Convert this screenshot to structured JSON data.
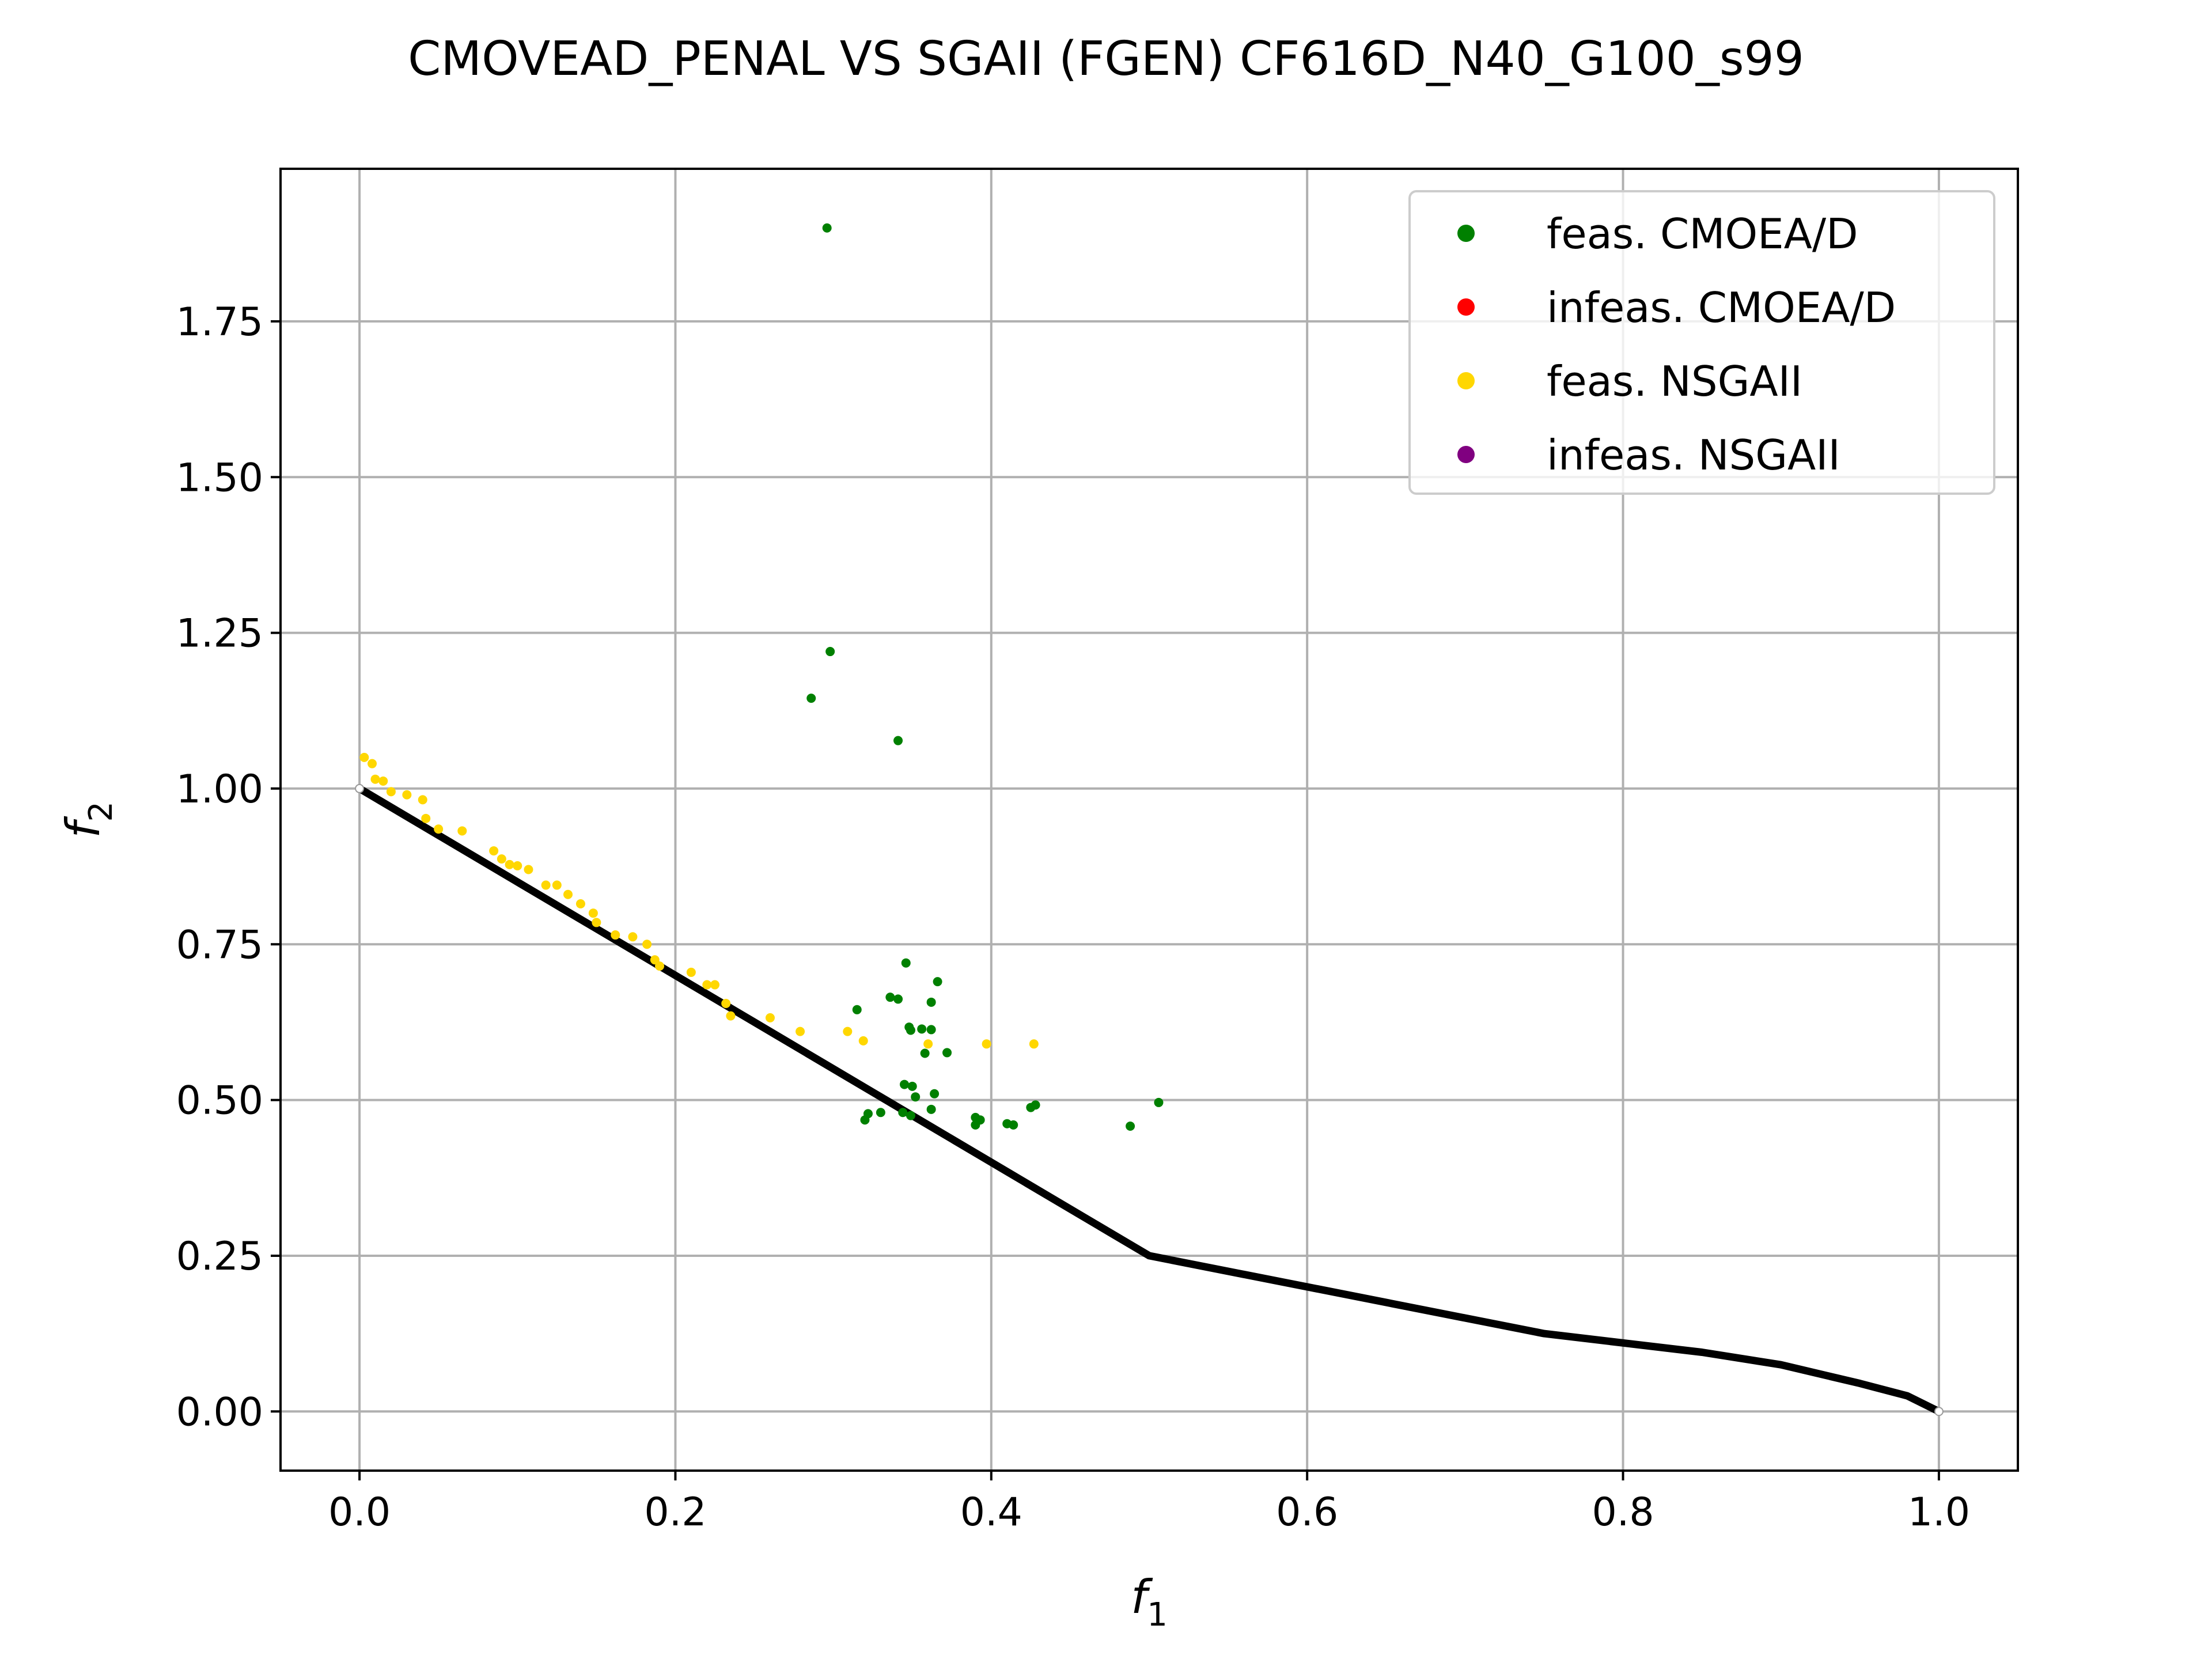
{
  "chart_data": {
    "type": "scatter",
    "title": "CMOVEAD_PENAL VS SGAII (FGEN) CF616D_N40_G100_s99",
    "xlabel": "f",
    "xlabel_sub": "1",
    "ylabel": "f",
    "ylabel_sub": "2",
    "xlim": [
      -0.05,
      1.05
    ],
    "ylim": [
      -0.095,
      1.995
    ],
    "xticks": [
      0.0,
      0.2,
      0.4,
      0.6,
      0.8,
      1.0
    ],
    "xtick_labels": [
      "0.0",
      "0.2",
      "0.4",
      "0.6",
      "0.8",
      "1.0"
    ],
    "yticks": [
      0.0,
      0.25,
      0.5,
      0.75,
      1.0,
      1.25,
      1.5,
      1.75
    ],
    "ytick_labels": [
      "0.00",
      "0.25",
      "0.50",
      "0.75",
      "1.00",
      "1.25",
      "1.50",
      "1.75"
    ],
    "grid": true,
    "legend_position": "top-right",
    "front": {
      "color": "#000000",
      "points": [
        [
          0.0,
          1.0
        ],
        [
          0.05,
          0.925
        ],
        [
          0.1,
          0.85
        ],
        [
          0.15,
          0.775
        ],
        [
          0.2,
          0.7
        ],
        [
          0.25,
          0.625
        ],
        [
          0.3,
          0.55
        ],
        [
          0.35,
          0.475
        ],
        [
          0.4,
          0.4
        ],
        [
          0.45,
          0.325
        ],
        [
          0.5,
          0.25
        ],
        [
          0.75,
          0.125
        ],
        [
          0.8,
          0.11
        ],
        [
          0.85,
          0.095
        ],
        [
          0.9,
          0.075
        ],
        [
          0.95,
          0.045
        ],
        [
          0.98,
          0.025
        ],
        [
          1.0,
          0.0
        ]
      ]
    },
    "series": [
      {
        "name": "feas. CMOEA/D",
        "color": "#008000",
        "points": [
          [
            0.296,
            1.9
          ],
          [
            0.298,
            1.22
          ],
          [
            0.286,
            1.145
          ],
          [
            0.341,
            1.077
          ],
          [
            0.346,
            0.72
          ],
          [
            0.366,
            0.69
          ],
          [
            0.336,
            0.665
          ],
          [
            0.341,
            0.662
          ],
          [
            0.315,
            0.645
          ],
          [
            0.362,
            0.657
          ],
          [
            0.348,
            0.617
          ],
          [
            0.349,
            0.612
          ],
          [
            0.356,
            0.614
          ],
          [
            0.362,
            0.613
          ],
          [
            0.358,
            0.575
          ],
          [
            0.372,
            0.576
          ],
          [
            0.345,
            0.525
          ],
          [
            0.35,
            0.522
          ],
          [
            0.352,
            0.505
          ],
          [
            0.364,
            0.51
          ],
          [
            0.344,
            0.48
          ],
          [
            0.349,
            0.475
          ],
          [
            0.362,
            0.485
          ],
          [
            0.322,
            0.478
          ],
          [
            0.33,
            0.48
          ],
          [
            0.32,
            0.468
          ],
          [
            0.39,
            0.472
          ],
          [
            0.393,
            0.468
          ],
          [
            0.39,
            0.46
          ],
          [
            0.41,
            0.462
          ],
          [
            0.414,
            0.46
          ],
          [
            0.425,
            0.488
          ],
          [
            0.428,
            0.492
          ],
          [
            0.488,
            0.458
          ],
          [
            0.506,
            0.496
          ]
        ]
      },
      {
        "name": "infeas. CMOEA/D",
        "color": "#ff0000",
        "points": []
      },
      {
        "name": "feas. NSGAII",
        "color": "#ffd700",
        "points": [
          [
            0.003,
            1.05
          ],
          [
            0.008,
            1.04
          ],
          [
            0.01,
            1.015
          ],
          [
            0.015,
            1.012
          ],
          [
            0.02,
            0.995
          ],
          [
            0.03,
            0.99
          ],
          [
            0.04,
            0.982
          ],
          [
            0.042,
            0.952
          ],
          [
            0.05,
            0.935
          ],
          [
            0.065,
            0.932
          ],
          [
            0.085,
            0.9
          ],
          [
            0.09,
            0.887
          ],
          [
            0.095,
            0.878
          ],
          [
            0.1,
            0.876
          ],
          [
            0.107,
            0.87
          ],
          [
            0.118,
            0.845
          ],
          [
            0.125,
            0.845
          ],
          [
            0.132,
            0.83
          ],
          [
            0.14,
            0.815
          ],
          [
            0.148,
            0.8
          ],
          [
            0.15,
            0.785
          ],
          [
            0.162,
            0.765
          ],
          [
            0.173,
            0.762
          ],
          [
            0.182,
            0.75
          ],
          [
            0.187,
            0.725
          ],
          [
            0.19,
            0.715
          ],
          [
            0.21,
            0.705
          ],
          [
            0.22,
            0.685
          ],
          [
            0.225,
            0.685
          ],
          [
            0.232,
            0.655
          ],
          [
            0.235,
            0.635
          ],
          [
            0.26,
            0.632
          ],
          [
            0.279,
            0.61
          ],
          [
            0.309,
            0.61
          ],
          [
            0.319,
            0.595
          ],
          [
            0.36,
            0.59
          ],
          [
            0.397,
            0.59
          ],
          [
            0.427,
            0.59
          ]
        ]
      },
      {
        "name": "infeas. NSGAII",
        "color": "#800080",
        "points": []
      }
    ]
  }
}
